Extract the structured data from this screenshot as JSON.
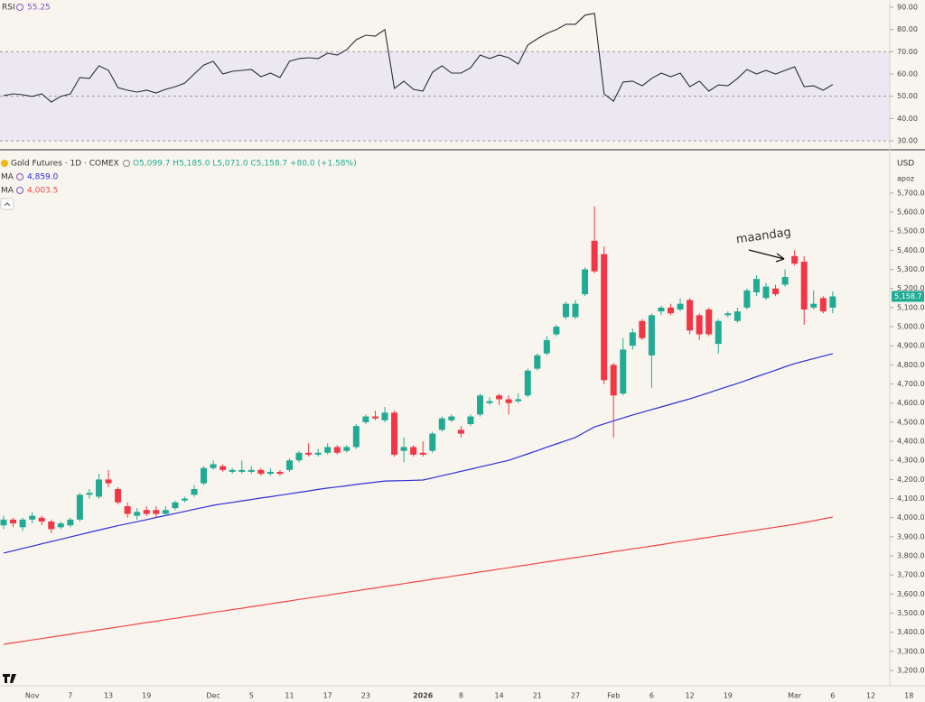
{
  "chart_data": [
    {
      "type": "line",
      "title": "RSI",
      "last_label": "55.25",
      "color": "#2a2e39",
      "label_color": "#7e57c2",
      "band": [
        30,
        70
      ],
      "band_color": "#ece8f1",
      "levels": [
        70,
        50,
        30
      ],
      "ylim": [
        27.6,
        93.2
      ],
      "yticks": [
        {
          "value": 90,
          "label": "90.00"
        },
        {
          "value": 80,
          "label": "80.00"
        },
        {
          "value": 70,
          "label": "70.00"
        },
        {
          "value": 60,
          "label": "60.00"
        },
        {
          "value": 50,
          "label": "50.00"
        },
        {
          "value": 40,
          "label": "40.00"
        },
        {
          "value": 30,
          "label": "30.00"
        }
      ],
      "values": [
        50.3,
        51.1,
        50.7,
        49.9,
        51.1,
        47.4,
        49.9,
        51.1,
        58.4,
        58.0,
        63.7,
        61.6,
        53.9,
        52.7,
        51.9,
        52.7,
        51.5,
        53.1,
        54.3,
        55.9,
        60.0,
        64.0,
        65.7,
        60.0,
        61.2,
        61.6,
        62.0,
        58.8,
        60.4,
        58.4,
        65.7,
        66.9,
        67.3,
        66.9,
        69.3,
        68.5,
        70.9,
        75.4,
        77.4,
        77.0,
        79.9,
        53.5,
        56.8,
        53.1,
        52.3,
        60.8,
        63.7,
        60.4,
        60.4,
        62.8,
        68.5,
        66.9,
        68.5,
        67.3,
        64.5,
        73.0,
        75.8,
        78.2,
        79.9,
        82.3,
        82.3,
        86.4,
        87.2,
        51.1,
        47.8,
        56.4,
        56.8,
        54.7,
        58.0,
        60.4,
        58.8,
        60.4,
        54.3,
        56.8,
        52.3,
        55.1,
        54.7,
        58.0,
        62.0,
        60.0,
        61.6,
        60.0,
        61.6,
        63.2,
        54.3,
        54.7,
        52.7,
        55.25,
        null,
        null,
        null,
        null,
        null,
        null,
        null,
        null
      ]
    },
    {
      "type": "candlestick",
      "title": "Gold Futures · 1D · COMEX",
      "ohlc_text": "O5,099.7 H5,185.0 L5,071.0 C5,158.7 +80.0 (+1.58%)",
      "currency": "USD",
      "unit_menu": "apoz",
      "close_label": "5,158.7",
      "annotation": "maandag",
      "up_color": "#22ab94",
      "down_color": "#f23645",
      "ylim": [
        3120,
        5898
      ],
      "yticks": [
        {
          "value": 5700,
          "label": "5,700.0"
        },
        {
          "value": 5600,
          "label": "5,600.0"
        },
        {
          "value": 5500,
          "label": "5,500.0"
        },
        {
          "value": 5400,
          "label": "5,400.0"
        },
        {
          "value": 5300,
          "label": "5,300.0"
        },
        {
          "value": 5200,
          "label": "5,200.0"
        },
        {
          "value": 5100,
          "label": "5,100.0"
        },
        {
          "value": 5000,
          "label": "5,000.0"
        },
        {
          "value": 4900,
          "label": "4,900.0"
        },
        {
          "value": 4800,
          "label": "4,800.0"
        },
        {
          "value": 4700,
          "label": "4,700.0"
        },
        {
          "value": 4600,
          "label": "4,600.0"
        },
        {
          "value": 4500,
          "label": "4,500.0"
        },
        {
          "value": 4400,
          "label": "4,400.0"
        },
        {
          "value": 4300,
          "label": "4,300.0"
        },
        {
          "value": 4200,
          "label": "4,200.0"
        },
        {
          "value": 4100,
          "label": "4,100.0"
        },
        {
          "value": 4000,
          "label": "4,000.0"
        },
        {
          "value": 3900,
          "label": "3,900.0"
        },
        {
          "value": 3800,
          "label": "3,800.0"
        },
        {
          "value": 3700,
          "label": "3,700.0"
        },
        {
          "value": 3600,
          "label": "3,600.0"
        },
        {
          "value": 3500,
          "label": "3,500.0"
        },
        {
          "value": 3400,
          "label": "3,400.0"
        },
        {
          "value": 3300,
          "label": "3,300.0"
        },
        {
          "value": 3200,
          "label": "3,200.0"
        }
      ],
      "categories": [
        null,
        null,
        null,
        "Nov",
        null,
        null,
        null,
        "7",
        null,
        null,
        null,
        "13",
        null,
        null,
        null,
        "19",
        null,
        null,
        null,
        null,
        null,
        null,
        "Dec",
        null,
        null,
        null,
        "5",
        null,
        null,
        null,
        "11",
        null,
        null,
        null,
        "17",
        null,
        null,
        null,
        "23",
        null,
        null,
        null,
        null,
        null,
        "2026",
        null,
        null,
        null,
        "8",
        null,
        null,
        null,
        "14",
        null,
        null,
        null,
        "21",
        null,
        null,
        null,
        "27",
        null,
        null,
        null,
        "Feb",
        null,
        null,
        null,
        "6",
        null,
        null,
        null,
        "12",
        null,
        null,
        null,
        "19",
        null,
        null,
        null,
        null,
        null,
        null,
        "Mar",
        null,
        null,
        null,
        "6",
        null,
        null,
        null,
        "12",
        null,
        null,
        null,
        "18"
      ],
      "open": [
        3960,
        3990,
        3950,
        3990,
        4000,
        3980,
        3950,
        3960,
        3990,
        4120,
        4110,
        4200,
        4150,
        4060,
        4010,
        4040,
        4040,
        4020,
        4050,
        4090,
        4120,
        4180,
        4260,
        4270,
        4240,
        4240,
        4240,
        4250,
        4230,
        4240,
        4250,
        4300,
        4340,
        4330,
        4340,
        4370,
        4350,
        4370,
        4500,
        4530,
        4510,
        4550,
        4350,
        4370,
        4340,
        4350,
        4460,
        4510,
        4460,
        4490,
        4540,
        4600,
        4640,
        4620,
        4610,
        4640,
        4780,
        4860,
        4960,
        5050,
        5050,
        5170,
        5450,
        5380,
        4800,
        4650,
        4900,
        5030,
        4850,
        5080,
        5100,
        5090,
        5140,
        5060,
        5090,
        4910,
        5060,
        5030,
        5100,
        5180,
        5150,
        5200,
        5220,
        5370,
        5340,
        5100,
        5150,
        5099.7,
        null,
        null,
        null,
        null,
        null,
        null,
        null,
        null
      ],
      "high": [
        4010,
        4000,
        4000,
        4030,
        4010,
        3990,
        3980,
        4000,
        4130,
        4150,
        4230,
        4250,
        4160,
        4080,
        4050,
        4060,
        4060,
        4060,
        4090,
        4110,
        4170,
        4270,
        4300,
        4280,
        4260,
        4300,
        4270,
        4260,
        4260,
        4250,
        4310,
        4350,
        4390,
        4360,
        4390,
        4380,
        4380,
        4490,
        4540,
        4560,
        4580,
        4560,
        4420,
        4380,
        4400,
        4450,
        4530,
        4540,
        4480,
        4540,
        4650,
        4630,
        4650,
        4640,
        4650,
        4780,
        4860,
        4950,
        5010,
        5130,
        5140,
        5310,
        5630,
        5420,
        4810,
        4940,
        4990,
        5040,
        5070,
        5110,
        5120,
        5150,
        5150,
        5070,
        5100,
        5040,
        5080,
        5100,
        5200,
        5270,
        5230,
        5220,
        5300,
        5400,
        5370,
        5190,
        5160,
        5185,
        null,
        null,
        null,
        null,
        null,
        null,
        null,
        null
      ],
      "low": [
        3940,
        3950,
        3930,
        3970,
        3960,
        3920,
        3940,
        3950,
        3980,
        4100,
        4100,
        4160,
        4070,
        4000,
        3990,
        4010,
        4000,
        4010,
        4040,
        4080,
        4110,
        4170,
        4250,
        4240,
        4230,
        4230,
        4230,
        4220,
        4220,
        4220,
        4240,
        4290,
        4320,
        4320,
        4330,
        4330,
        4340,
        4360,
        4490,
        4510,
        4500,
        4320,
        4290,
        4320,
        4320,
        4340,
        4450,
        4500,
        4420,
        4480,
        4530,
        4590,
        4590,
        4540,
        4600,
        4630,
        4770,
        4850,
        4950,
        5040,
        5040,
        5160,
        5280,
        4700,
        4420,
        4640,
        4880,
        4930,
        4680,
        5060,
        5060,
        5080,
        4960,
        4930,
        4950,
        4860,
        5050,
        5020,
        5090,
        5160,
        5140,
        5160,
        5210,
        5320,
        5010,
        5090,
        5070,
        5071,
        null,
        null,
        null,
        null,
        null,
        null,
        null,
        null
      ],
      "close": [
        3990,
        3970,
        3990,
        4010,
        3980,
        3940,
        3970,
        3990,
        4120,
        4130,
        4200,
        4180,
        4080,
        4020,
        4030,
        4020,
        4020,
        4040,
        4080,
        4100,
        4150,
        4260,
        4280,
        4250,
        4250,
        4250,
        4250,
        4230,
        4240,
        4230,
        4300,
        4340,
        4330,
        4340,
        4370,
        4340,
        4370,
        4480,
        4530,
        4520,
        4550,
        4330,
        4370,
        4330,
        4330,
        4440,
        4520,
        4530,
        4440,
        4530,
        4640,
        4610,
        4620,
        4600,
        4620,
        4770,
        4850,
        4930,
        5000,
        5120,
        5120,
        5300,
        5290,
        4720,
        4640,
        4880,
        4970,
        4940,
        5060,
        5100,
        5070,
        5120,
        4980,
        4960,
        4960,
        5030,
        5070,
        5080,
        5190,
        5250,
        5210,
        5170,
        5260,
        5330,
        5090,
        5120,
        5080,
        5158.7,
        null,
        null,
        null,
        null,
        null,
        null,
        null,
        null
      ],
      "series": [
        {
          "name": "MA",
          "color": "#2f2fd8",
          "last_label": "4,859.0",
          "values": [
            3815,
            3827,
            3839,
            3851,
            3863,
            3875,
            3887,
            3899,
            3911,
            3923,
            3935,
            3947,
            3958,
            3969,
            3979,
            3990,
            4001,
            4011,
            4022,
            4033,
            4044,
            4054,
            4065,
            4073,
            4080,
            4088,
            4095,
            4103,
            4110,
            4118,
            4125,
            4133,
            4140,
            4148,
            4155,
            4161,
            4167,
            4174,
            4180,
            4186,
            4192,
            4193,
            4194,
            4196,
            4197,
            4208,
            4220,
            4231,
            4243,
            4254,
            4266,
            4277,
            4289,
            4300,
            4317,
            4334,
            4351,
            4369,
            4386,
            4403,
            4420,
            4448,
            4475,
            4491,
            4507,
            4522,
            4538,
            4552,
            4566,
            4580,
            4594,
            4608,
            4622,
            4638,
            4654,
            4671,
            4687,
            4703,
            4720,
            4738,
            4755,
            4772,
            4790,
            4807,
            4820,
            4833,
            4846,
            4859,
            null,
            null,
            null,
            null,
            null,
            null,
            null,
            null
          ]
        },
        {
          "name": "MA",
          "color": "#f04848",
          "last_label": "4,003.5",
          "values": [
            3337,
            3345,
            3352,
            3360,
            3367,
            3375,
            3382,
            3390,
            3398,
            3405,
            3413,
            3420,
            3428,
            3435,
            3443,
            3451,
            3458,
            3466,
            3473,
            3481,
            3488,
            3496,
            3504,
            3511,
            3519,
            3526,
            3534,
            3541,
            3549,
            3557,
            3564,
            3572,
            3579,
            3587,
            3594,
            3602,
            3610,
            3617,
            3625,
            3632,
            3640,
            3647,
            3655,
            3663,
            3670,
            3678,
            3685,
            3693,
            3700,
            3708,
            3716,
            3723,
            3731,
            3738,
            3746,
            3753,
            3761,
            3769,
            3776,
            3784,
            3791,
            3799,
            3806,
            3814,
            3822,
            3829,
            3837,
            3844,
            3852,
            3859,
            3867,
            3875,
            3882,
            3890,
            3897,
            3905,
            3912,
            3920,
            3928,
            3935,
            3943,
            3950,
            3958,
            3965,
            3975,
            3984,
            3994,
            4003.5,
            null,
            null,
            null,
            null,
            null,
            null,
            null,
            null
          ]
        }
      ]
    }
  ]
}
